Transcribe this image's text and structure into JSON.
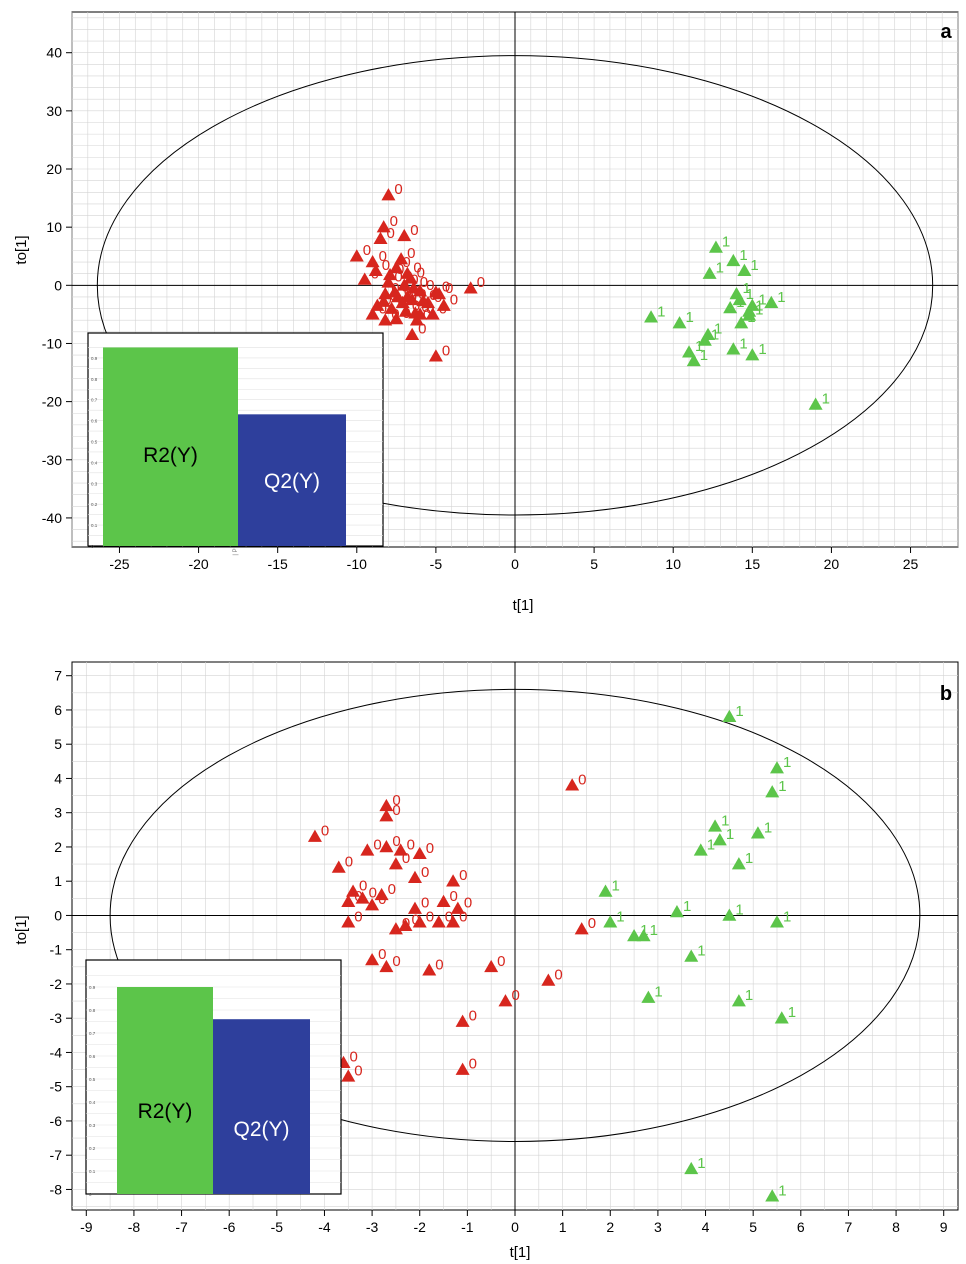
{
  "colors": {
    "class0": "#d7261e",
    "class1": "#5cc54a",
    "r2bar": "#5cc54a",
    "q2bar": "#2e3f9c",
    "grid": "#d4d4d4",
    "axis": "#000000"
  },
  "chart_data": [
    {
      "type": "scatter",
      "panel_label": "a",
      "xlabel": "t[1]",
      "ylabel": "to[1]",
      "xlim": [
        -28,
        28
      ],
      "ylim": [
        -45,
        47
      ],
      "xticks": [
        -25,
        -20,
        -15,
        -10,
        -5,
        0,
        5,
        10,
        15,
        20,
        25
      ],
      "yticks": [
        -40,
        -30,
        -20,
        -10,
        0,
        10,
        20,
        30,
        40
      ],
      "grid": true,
      "ellipse": {
        "rx": 26.4,
        "ry": 39.5
      },
      "series": [
        {
          "name": "0",
          "color": "#d7261e",
          "points": [
            [
              -8,
              15.5
            ],
            [
              -8.3,
              10
            ],
            [
              -8.5,
              8
            ],
            [
              -7,
              8.5
            ],
            [
              -10,
              5
            ],
            [
              -9,
              4
            ],
            [
              -7.2,
              4.5
            ],
            [
              -8.8,
              2.5
            ],
            [
              -7.5,
              3
            ],
            [
              -6.8,
              2
            ],
            [
              -9.5,
              1
            ],
            [
              -8,
              0.5
            ],
            [
              -7,
              0
            ],
            [
              -6,
              -1
            ],
            [
              -5,
              -1.2
            ],
            [
              -8.2,
              -1.5
            ],
            [
              -7.4,
              -2
            ],
            [
              -6.5,
              -2.5
            ],
            [
              -5.5,
              -3
            ],
            [
              -4.5,
              -3.5
            ],
            [
              -8.7,
              -3.5
            ],
            [
              -7.8,
              -4
            ],
            [
              -6.9,
              -4.5
            ],
            [
              -6,
              -5
            ],
            [
              -9,
              -5
            ],
            [
              -7.5,
              -5.8
            ],
            [
              -6.2,
              -6
            ],
            [
              -8.2,
              -6
            ],
            [
              -6.5,
              -8.5
            ],
            [
              -5,
              -12.2
            ],
            [
              -2.8,
              -0.5
            ],
            [
              -6.8,
              -2
            ],
            [
              -5.8,
              -2.7
            ],
            [
              -4.8,
              -1.5
            ],
            [
              -7.6,
              -1.2
            ],
            [
              -6.3,
              -4.8
            ],
            [
              -5.2,
              -5
            ],
            [
              -8.3,
              -2.8
            ],
            [
              -7.1,
              -3
            ],
            [
              -6.4,
              -0.5
            ],
            [
              -7.9,
              1.8
            ],
            [
              -6.6,
              1.2
            ]
          ]
        },
        {
          "name": "1",
          "color": "#5cc54a",
          "points": [
            [
              12.7,
              6.5
            ],
            [
              13.8,
              4.2
            ],
            [
              12.3,
              2
            ],
            [
              14.5,
              2.5
            ],
            [
              14,
              -1.5
            ],
            [
              14.2,
              -2.5
            ],
            [
              15,
              -3.5
            ],
            [
              16.2,
              -3
            ],
            [
              14.8,
              -4.5
            ],
            [
              14.3,
              -6.5
            ],
            [
              8.6,
              -5.5
            ],
            [
              10.4,
              -6.5
            ],
            [
              12.2,
              -8.5
            ],
            [
              12,
              -9.5
            ],
            [
              13.8,
              -11
            ],
            [
              15,
              -12
            ],
            [
              11,
              -11.5
            ],
            [
              11.3,
              -13
            ],
            [
              19,
              -20.5
            ],
            [
              14.8,
              -5.2
            ],
            [
              13.6,
              -3.9
            ]
          ]
        }
      ],
      "inset": {
        "type": "bar",
        "categories": [
          "R2(Y)",
          "Q2(Y)"
        ],
        "values": [
          0.95,
          0.63
        ],
        "ylim": [
          0,
          1
        ],
        "yticks": [
          "0",
          "0.1",
          "0.2",
          "0.3",
          "0.4",
          "0.5",
          "0.6",
          "0.7",
          "0.8",
          "0.9"
        ],
        "note": "| P"
      }
    },
    {
      "type": "scatter",
      "panel_label": "b",
      "xlabel": "t[1]",
      "ylabel": "to[1]",
      "xlim": [
        -9.3,
        9.3
      ],
      "ylim": [
        -8.6,
        7.4
      ],
      "xticks": [
        -9,
        -8,
        -7,
        -6,
        -5,
        -4,
        -3,
        -2,
        -1,
        0,
        1,
        2,
        3,
        4,
        5,
        6,
        7,
        8,
        9
      ],
      "yticks": [
        -8,
        -7,
        -6,
        -5,
        -4,
        -3,
        -2,
        -1,
        0,
        1,
        2,
        3,
        4,
        5,
        6,
        7
      ],
      "grid": true,
      "ellipse": {
        "rx": 8.5,
        "ry": 6.6
      },
      "series": [
        {
          "name": "0",
          "color": "#d7261e",
          "points": [
            [
              -2.7,
              3.2
            ],
            [
              -2.7,
              2.9
            ],
            [
              -4.2,
              2.3
            ],
            [
              -3.1,
              1.9
            ],
            [
              -2.4,
              1.9
            ],
            [
              -2.7,
              2
            ],
            [
              -2,
              1.8
            ],
            [
              -3.7,
              1.4
            ],
            [
              -2.5,
              1.5
            ],
            [
              -2.1,
              1.1
            ],
            [
              -1.3,
              1
            ],
            [
              -3.4,
              0.7
            ],
            [
              -3.2,
              0.5
            ],
            [
              -2.8,
              0.6
            ],
            [
              -3,
              0.3
            ],
            [
              -3.5,
              0.4
            ],
            [
              -1.5,
              0.4
            ],
            [
              -1.2,
              0.2
            ],
            [
              -2.1,
              0.2
            ],
            [
              -2,
              -0.2
            ],
            [
              -1.6,
              -0.2
            ],
            [
              -3.5,
              -0.2
            ],
            [
              -1.3,
              -0.2
            ],
            [
              -2.5,
              -0.4
            ],
            [
              -2.3,
              -0.3
            ],
            [
              -3,
              -1.3
            ],
            [
              -2.7,
              -1.5
            ],
            [
              -1.8,
              -1.6
            ],
            [
              -0.5,
              -1.5
            ],
            [
              0.7,
              -1.9
            ],
            [
              -0.2,
              -2.5
            ],
            [
              1.2,
              3.8
            ],
            [
              1.4,
              -0.4
            ],
            [
              -1.1,
              -3.1
            ],
            [
              -1.1,
              -4.5
            ],
            [
              -3.5,
              -4.7
            ],
            [
              -3.6,
              -4.3
            ]
          ]
        },
        {
          "name": "1",
          "color": "#5cc54a",
          "points": [
            [
              4.5,
              5.8
            ],
            [
              5.5,
              4.3
            ],
            [
              5.4,
              3.6
            ],
            [
              4.2,
              2.6
            ],
            [
              4.3,
              2.2
            ],
            [
              5.1,
              2.4
            ],
            [
              3.9,
              1.9
            ],
            [
              4.7,
              1.5
            ],
            [
              1.9,
              0.7
            ],
            [
              2,
              -0.2
            ],
            [
              3.4,
              0.1
            ],
            [
              4.5,
              0
            ],
            [
              5.5,
              -0.2
            ],
            [
              2.5,
              -0.6
            ],
            [
              2.7,
              -0.6
            ],
            [
              3.7,
              -1.2
            ],
            [
              2.8,
              -2.4
            ],
            [
              4.7,
              -2.5
            ],
            [
              5.6,
              -3
            ],
            [
              3.7,
              -7.4
            ],
            [
              5.4,
              -8.2
            ]
          ]
        }
      ],
      "inset": {
        "type": "bar",
        "categories": [
          "R2(Y)",
          "Q2(Y)"
        ],
        "values": [
          0.9,
          0.76
        ],
        "ylim": [
          0,
          1
        ],
        "yticks": [
          "0",
          "0.1",
          "0.2",
          "0.3",
          "0.4",
          "0.5",
          "0.6",
          "0.7",
          "0.8",
          "0.9"
        ]
      }
    }
  ]
}
